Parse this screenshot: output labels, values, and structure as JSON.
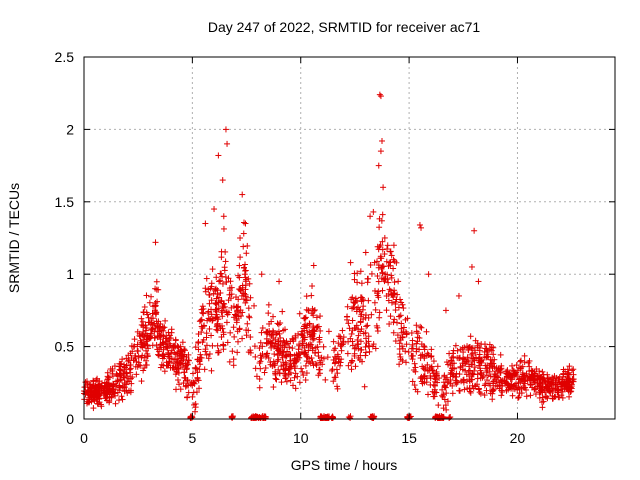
{
  "chart_data": {
    "type": "scatter",
    "title": "Day 247 of 2022, SRMTID for receiver ac71",
    "xlabel": "GPS time / hours",
    "ylabel": "SRMTID / TECUs",
    "xlim": [
      0,
      24.5
    ],
    "ylim": [
      0,
      2.5
    ],
    "xticks": [
      0,
      5,
      10,
      15,
      20
    ],
    "xtick_labels": [
      "0",
      "5",
      "10",
      "15",
      "20"
    ],
    "yticks": [
      0,
      0.5,
      1,
      1.5,
      2,
      2.5
    ],
    "ytick_labels": [
      "0",
      "0.5",
      "1",
      "1.5",
      "2",
      "2.5"
    ],
    "grid": true,
    "marker": "+",
    "color": "#e00000",
    "envelope": {
      "x": [
        0,
        0.5,
        1,
        1.5,
        2,
        2.5,
        3,
        3.3,
        3.6,
        4,
        4.5,
        5,
        5.3,
        5.6,
        6,
        6.3,
        6.6,
        7,
        7.4,
        7.7,
        8,
        8.5,
        9,
        9.5,
        10,
        10.5,
        11,
        11.5,
        12,
        12.5,
        13,
        13.5,
        13.8,
        14.2,
        14.6,
        15,
        15.5,
        16,
        16.5,
        17,
        17.5,
        18,
        18.5,
        19,
        19.5,
        20,
        20.5,
        21,
        21.5,
        22,
        22.6
      ],
      "center": [
        0.2,
        0.18,
        0.2,
        0.25,
        0.3,
        0.45,
        0.6,
        0.75,
        0.5,
        0.45,
        0.4,
        0.2,
        0.45,
        0.7,
        0.7,
        0.8,
        0.9,
        0.6,
        1.05,
        0.65,
        0.35,
        0.55,
        0.45,
        0.4,
        0.5,
        0.6,
        0.4,
        0.4,
        0.5,
        0.65,
        0.6,
        0.9,
        1.1,
        0.95,
        0.65,
        0.5,
        0.45,
        0.3,
        0.2,
        0.3,
        0.4,
        0.4,
        0.35,
        0.3,
        0.25,
        0.28,
        0.3,
        0.25,
        0.22,
        0.22,
        0.28
      ],
      "spread": [
        0.12,
        0.12,
        0.15,
        0.2,
        0.22,
        0.25,
        0.3,
        0.3,
        0.25,
        0.2,
        0.25,
        0.2,
        0.35,
        0.4,
        0.4,
        0.5,
        0.6,
        0.4,
        0.45,
        0.4,
        0.25,
        0.3,
        0.3,
        0.25,
        0.3,
        0.35,
        0.3,
        0.3,
        0.35,
        0.45,
        0.45,
        0.5,
        0.55,
        0.5,
        0.35,
        0.3,
        0.3,
        0.25,
        0.2,
        0.25,
        0.3,
        0.3,
        0.25,
        0.2,
        0.15,
        0.15,
        0.15,
        0.15,
        0.12,
        0.12,
        0.15
      ]
    },
    "spikes": [
      {
        "x": 3.3,
        "y": 1.22
      },
      {
        "x": 5.6,
        "y": 1.35
      },
      {
        "x": 6.0,
        "y": 1.45
      },
      {
        "x": 6.2,
        "y": 1.82
      },
      {
        "x": 6.4,
        "y": 1.65
      },
      {
        "x": 6.55,
        "y": 2.0
      },
      {
        "x": 6.6,
        "y": 1.9
      },
      {
        "x": 6.45,
        "y": 1.4
      },
      {
        "x": 7.3,
        "y": 1.55
      },
      {
        "x": 7.45,
        "y": 1.35
      },
      {
        "x": 7.2,
        "y": 1.25
      },
      {
        "x": 8.2,
        "y": 1.0
      },
      {
        "x": 9.0,
        "y": 0.95
      },
      {
        "x": 10.6,
        "y": 1.06
      },
      {
        "x": 12.3,
        "y": 1.08
      },
      {
        "x": 13.0,
        "y": 1.15
      },
      {
        "x": 13.2,
        "y": 1.4
      },
      {
        "x": 13.35,
        "y": 1.43
      },
      {
        "x": 13.6,
        "y": 1.75
      },
      {
        "x": 13.7,
        "y": 1.85
      },
      {
        "x": 13.75,
        "y": 1.92
      },
      {
        "x": 13.65,
        "y": 2.24
      },
      {
        "x": 13.7,
        "y": 2.23
      },
      {
        "x": 13.8,
        "y": 1.6
      },
      {
        "x": 14.3,
        "y": 1.2
      },
      {
        "x": 15.5,
        "y": 1.34
      },
      {
        "x": 15.55,
        "y": 1.32
      },
      {
        "x": 15.9,
        "y": 1.0
      },
      {
        "x": 16.7,
        "y": 0.75
      },
      {
        "x": 18.0,
        "y": 1.3
      },
      {
        "x": 17.9,
        "y": 1.05
      },
      {
        "x": 18.2,
        "y": 0.95
      },
      {
        "x": 17.3,
        "y": 0.85
      }
    ],
    "zero_runs": [
      [
        4.9,
        5.0
      ],
      [
        6.8,
        6.9
      ],
      [
        7.7,
        8.4
      ],
      [
        10.9,
        11.5
      ],
      [
        13.2,
        13.4
      ],
      [
        14.9,
        15.1
      ],
      [
        16.2,
        16.6
      ],
      [
        16.8,
        16.9
      ],
      [
        12.2,
        12.3
      ]
    ],
    "gaps_no_data": [
      [
        12.0,
        12.12
      ]
    ],
    "point_count": 2200
  }
}
